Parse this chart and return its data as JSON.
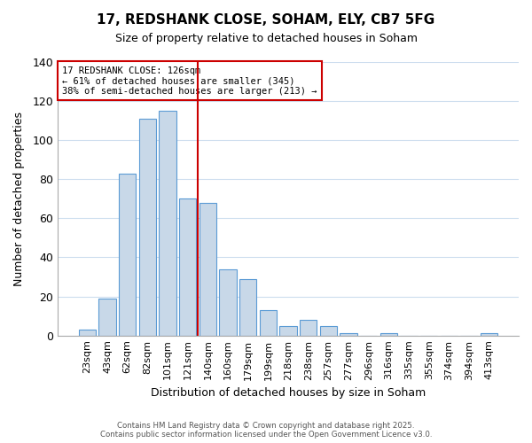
{
  "title": "17, REDSHANK CLOSE, SOHAM, ELY, CB7 5FG",
  "subtitle": "Size of property relative to detached houses in Soham",
  "xlabel": "Distribution of detached houses by size in Soham",
  "ylabel": "Number of detached properties",
  "bar_labels": [
    "23sqm",
    "43sqm",
    "62sqm",
    "82sqm",
    "101sqm",
    "121sqm",
    "140sqm",
    "160sqm",
    "179sqm",
    "199sqm",
    "218sqm",
    "238sqm",
    "257sqm",
    "277sqm",
    "296sqm",
    "316sqm",
    "335sqm",
    "355sqm",
    "374sqm",
    "394sqm",
    "413sqm"
  ],
  "bar_values": [
    3,
    19,
    83,
    111,
    115,
    70,
    68,
    34,
    29,
    13,
    5,
    8,
    5,
    1,
    0,
    1,
    0,
    0,
    0,
    0,
    1
  ],
  "bar_color": "#c8d8e8",
  "bar_edge_color": "#5b9bd5",
  "ylim": [
    0,
    140
  ],
  "yticks": [
    0,
    20,
    40,
    60,
    80,
    100,
    120,
    140
  ],
  "vline_x": 5.5,
  "vline_color": "#cc0000",
  "annotation_title": "17 REDSHANK CLOSE: 126sqm",
  "annotation_line1": "← 61% of detached houses are smaller (345)",
  "annotation_line2": "38% of semi-detached houses are larger (213) →",
  "annotation_box_color": "#ffffff",
  "annotation_box_edge": "#cc0000",
  "footer1": "Contains HM Land Registry data © Crown copyright and database right 2025.",
  "footer2": "Contains public sector information licensed under the Open Government Licence v3.0.",
  "bg_color": "#ffffff",
  "grid_color": "#ccddee"
}
